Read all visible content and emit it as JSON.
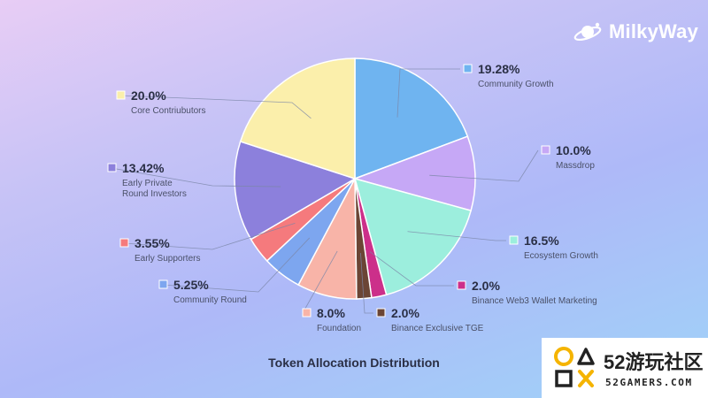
{
  "brand": {
    "name": "MilkyWay",
    "logo_icon": "milkyway-logo-icon"
  },
  "watermark": {
    "cn_text": "52游玩社区",
    "en_text": "52GAMERS.COM",
    "icon": "52gamers-logo-icon"
  },
  "chart_data": {
    "type": "pie",
    "title": "Token Allocation Distribution",
    "slices": [
      {
        "label": "Community Growth",
        "value": 19.28,
        "value_label": "19.28%",
        "color": "#6fb4f0"
      },
      {
        "label": "Massdrop",
        "value": 10.0,
        "value_label": "10.0%",
        "color": "#c6a8f6"
      },
      {
        "label": "Ecosystem Growth",
        "value": 16.5,
        "value_label": "16.5%",
        "color": "#9ceedd"
      },
      {
        "label": "Binance Web3 Wallet Marketing",
        "value": 2.0,
        "value_label": "2.0%",
        "color": "#cc2f8a"
      },
      {
        "label": "Binance Exclusive TGE",
        "value": 2.0,
        "value_label": "2.0%",
        "color": "#6b4535"
      },
      {
        "label": "Foundation",
        "value": 8.0,
        "value_label": "8.0%",
        "color": "#f8b4a8"
      },
      {
        "label": "Community Round",
        "value": 5.25,
        "value_label": "5.25%",
        "color": "#7da6ef"
      },
      {
        "label": "Early Supporters",
        "value": 3.55,
        "value_label": "3.55%",
        "color": "#f57a7d"
      },
      {
        "label": "Early Private\nRound Investors",
        "value": 13.42,
        "value_label": "13.42%",
        "color": "#8c80dc"
      },
      {
        "label": "Core Contriubutors",
        "value": 20.0,
        "value_label": "20.0%",
        "color": "#fbefab"
      }
    ],
    "legend": "callouts-around-pie"
  }
}
